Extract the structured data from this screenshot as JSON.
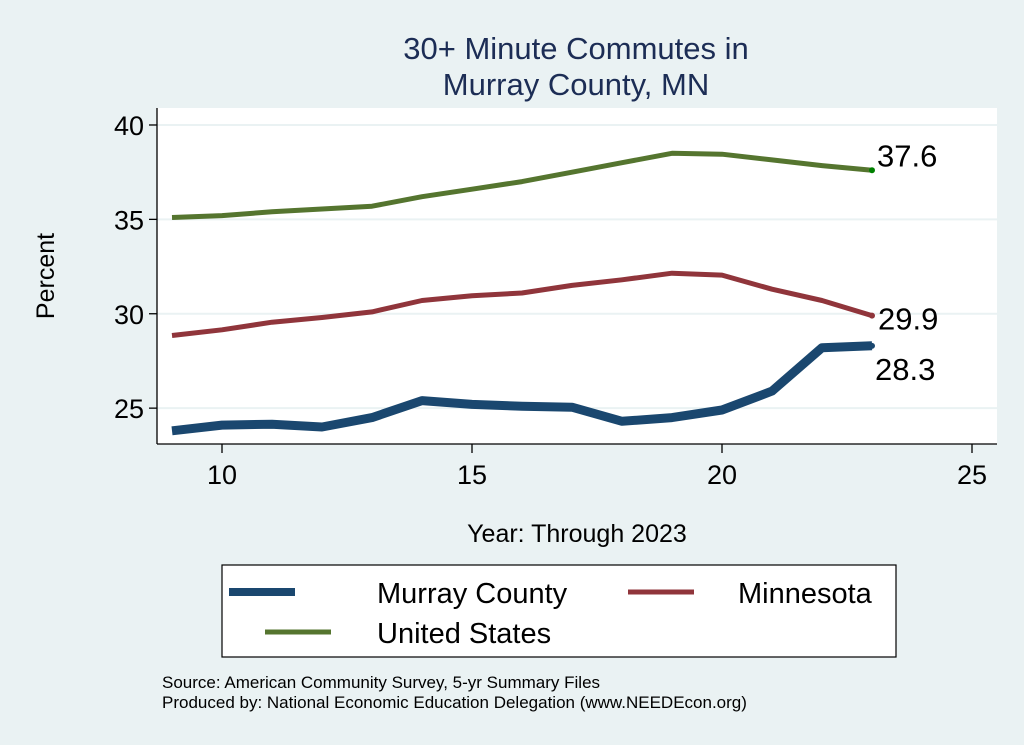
{
  "chart_data": {
    "type": "line",
    "title": [
      "30+ Minute Commutes in",
      "Murray County, MN"
    ],
    "xlabel": "Year: Through 2023",
    "ylabel": "Percent",
    "xlim": [
      8.7,
      25.5
    ],
    "ylim": [
      23.1,
      40.9
    ],
    "xticks": [
      10,
      15,
      20,
      25
    ],
    "yticks": [
      25,
      30,
      35,
      40
    ],
    "grid": "horizontal",
    "x": [
      9,
      10,
      11,
      12,
      13,
      14,
      15,
      16,
      17,
      18,
      19,
      20,
      21,
      22,
      23
    ],
    "series": [
      {
        "name": "Murray County",
        "color": "#1a476f",
        "values": [
          23.8,
          24.1,
          24.15,
          24.0,
          24.5,
          25.4,
          25.2,
          25.1,
          25.05,
          24.3,
          24.5,
          24.9,
          25.9,
          28.2,
          28.3
        ],
        "end_label": "28.3",
        "end_label_position": "below-right"
      },
      {
        "name": "Minnesota",
        "color": "#90353b",
        "values": [
          28.85,
          29.15,
          29.55,
          29.8,
          30.1,
          30.7,
          30.95,
          31.1,
          31.5,
          31.8,
          32.15,
          32.05,
          31.3,
          30.7,
          29.9
        ],
        "end_label": "29.9",
        "end_label_position": "right"
      },
      {
        "name": "United States",
        "color": "#55752f",
        "values": [
          35.1,
          35.2,
          35.4,
          35.55,
          35.7,
          36.2,
          36.6,
          37.0,
          37.5,
          38.0,
          38.5,
          38.45,
          38.15,
          37.85,
          37.6
        ],
        "end_label": "37.6",
        "end_label_position": "above-right",
        "end_marker_color": "#008000"
      }
    ],
    "legend": {
      "placement": "bottom",
      "entries": [
        "Murray County",
        "Minnesota",
        "United States"
      ]
    },
    "notes": [
      "Source: American Community Survey, 5-yr Summary Files",
      "Produced by: National Economic Education Delegation (www.NEEDEcon.org)"
    ]
  },
  "colors": {
    "background": "#eaf2f3",
    "plot_background": "#ffffff",
    "title": "#1c2d55",
    "gridline": "#eaf2f3"
  }
}
